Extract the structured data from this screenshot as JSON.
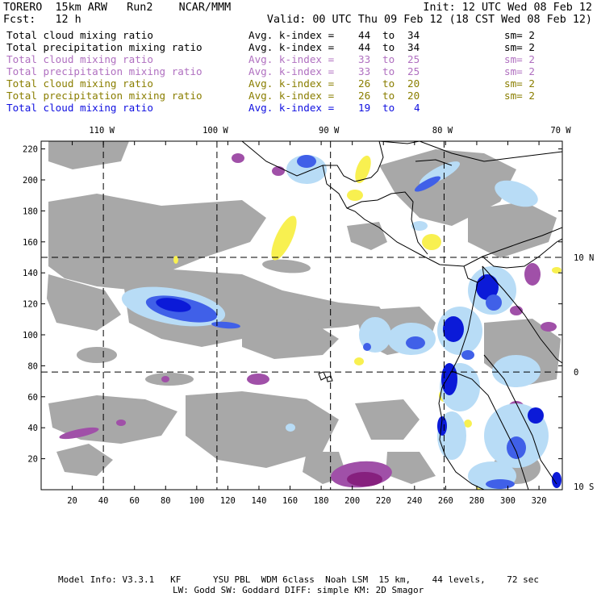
{
  "header": {
    "line1_left": "TORERO  15km ARW   Run2    NCAR/MMM",
    "line1_right": "Init: 12 UTC Wed 08 Feb 12",
    "line2_left": "Fcst:   12 h",
    "line2_right": "Valid: 00 UTC Thu 09 Feb 12 (18 CST Wed 08 Feb 12)"
  },
  "legend": [
    {
      "variable": "Total cloud mixing ratio",
      "avg": "Avg. k-index =",
      "k_high": "44",
      "to": "to",
      "k_low": "34",
      "sm": "sm= 2",
      "color": "#000000"
    },
    {
      "variable": "Total precipitation mixing ratio",
      "avg": "Avg. k-index =",
      "k_high": "44",
      "to": "to",
      "k_low": "34",
      "sm": "sm= 2",
      "color": "#000000"
    },
    {
      "variable": "Total cloud mixing ratio",
      "avg": "Avg. k-index =",
      "k_high": "33",
      "to": "to",
      "k_low": "25",
      "sm": "sm= 2",
      "color": "#b070c0"
    },
    {
      "variable": "Total precipitation mixing ratio",
      "avg": "Avg. k-index =",
      "k_high": "33",
      "to": "to",
      "k_low": "25",
      "sm": "sm= 2",
      "color": "#b070c0"
    },
    {
      "variable": "Total cloud mixing ratio",
      "avg": "Avg. k-index =",
      "k_high": "26",
      "to": "to",
      "k_low": "20",
      "sm": "sm= 2",
      "color": "#8a7e00"
    },
    {
      "variable": "Total precipitation mixing ratio",
      "avg": "Avg. k-index =",
      "k_high": "26",
      "to": "to",
      "k_low": "20",
      "sm": "sm= 2",
      "color": "#8a7e00"
    },
    {
      "variable": "Total cloud mixing ratio",
      "avg": "Avg. k-index =",
      "k_high": "19",
      "to": "to",
      "k_low": "4",
      "sm": "",
      "color": "#1010e0"
    }
  ],
  "map": {
    "x_grid_ticks": [
      20,
      40,
      60,
      80,
      100,
      120,
      140,
      160,
      180,
      200,
      220,
      240,
      260,
      280,
      300,
      320
    ],
    "y_grid_ticks": [
      20,
      40,
      60,
      80,
      100,
      120,
      140,
      160,
      180,
      200,
      220
    ],
    "x_range": [
      0,
      335
    ],
    "y_range": [
      0,
      225
    ],
    "longitude_labels": [
      {
        "text": "110 W",
        "grid_x": 40
      },
      {
        "text": "100 W",
        "grid_x": 113
      },
      {
        "text": "90 W",
        "grid_x": 186
      },
      {
        "text": "80 W",
        "grid_x": 259
      },
      {
        "text": "70 W",
        "grid_x": 335
      }
    ],
    "latitude_labels": [
      {
        "text": "10 N",
        "grid_y": 150
      },
      {
        "text": "0",
        "grid_y": 76
      },
      {
        "text": "10 S",
        "grid_y": 2
      }
    ],
    "colors": {
      "gray": "#a8a8a8",
      "magenta": "#a050a8",
      "magenta_dark": "#86207e",
      "yellow": "#f8f050",
      "light_blue": "#b8dcf6",
      "blue": "#4060e8",
      "deep_blue": "#0b1ad8",
      "coast": "#000000",
      "grid": "#000000"
    }
  },
  "footer": {
    "line1": "Model Info: V3.3.1   KF      YSU PBL  WDM 6class  Noah LSM  15 km,    44 levels,    72 sec",
    "line2": "LW: Godd SW: Goddard DIFF: simple KM: 2D Smagor"
  }
}
